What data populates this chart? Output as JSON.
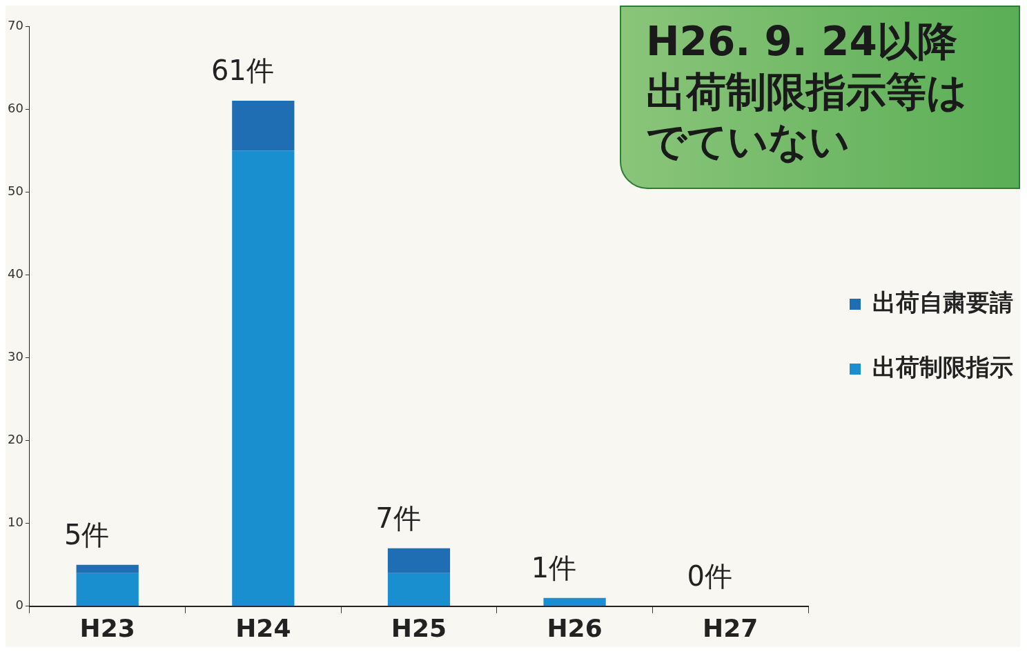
{
  "chart_data": {
    "type": "bar",
    "stacked": true,
    "categories": [
      "H23",
      "H24",
      "H25",
      "H26",
      "H27"
    ],
    "series": [
      {
        "name": "出荷制限指示",
        "color": "#1a8fcf",
        "values": [
          4,
          55,
          4,
          1,
          0
        ]
      },
      {
        "name": "出荷自粛要請",
        "color": "#1f6db3",
        "values": [
          1,
          6,
          3,
          0,
          0
        ]
      }
    ],
    "ylim": [
      0,
      70
    ],
    "yticks": [
      0,
      10,
      20,
      30,
      40,
      50,
      60,
      70
    ],
    "grid": false,
    "legend": "right",
    "totals": [
      "5件",
      "61件",
      "7件",
      "1件",
      "0件"
    ],
    "annotations": [
      "H26. 9. 24以降",
      "出荷制限指示等はでていない"
    ]
  }
}
